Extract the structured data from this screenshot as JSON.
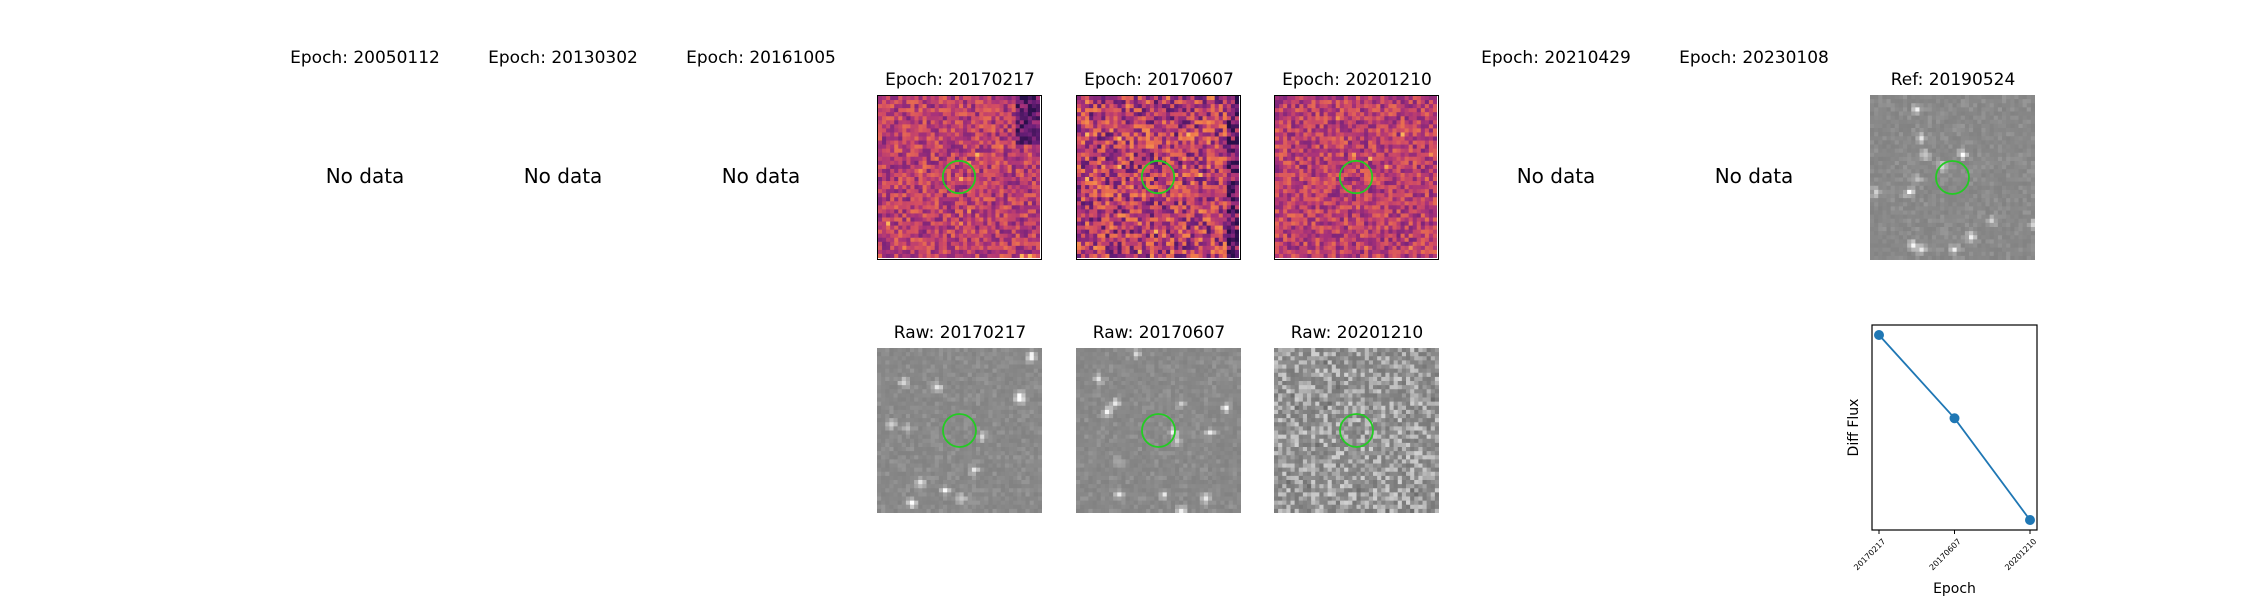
{
  "top_row": [
    {
      "title": "Epoch: 20050112",
      "status": "No data"
    },
    {
      "title": "Epoch: 20130302",
      "status": "No data"
    },
    {
      "title": "Epoch: 20161005",
      "status": "No data"
    },
    {
      "title": "Epoch: 20170217",
      "status": null
    },
    {
      "title": "Epoch: 20170607",
      "status": null
    },
    {
      "title": "Epoch: 20201210",
      "status": null
    },
    {
      "title": "Epoch: 20210429",
      "status": "No data"
    },
    {
      "title": "Epoch: 20230108",
      "status": "No data"
    },
    {
      "title": "Ref: 20190524",
      "status": null
    }
  ],
  "bottom_row": [
    {
      "title": "Raw: 20170217"
    },
    {
      "title": "Raw: 20170607"
    },
    {
      "title": "Raw: 20201210"
    }
  ],
  "colors": {
    "aperture": "#22cc22",
    "series": "#1f77b4",
    "diff_cmap": [
      "#2a0f4a",
      "#6b1f7a",
      "#a8327a",
      "#d44e62",
      "#f07a4a",
      "#fbb45a"
    ],
    "raw_gray": [
      "#6a6a6a",
      "#8c8c8c",
      "#ffffff"
    ]
  },
  "chart_data": {
    "type": "line",
    "x": [
      "20170217",
      "20170607",
      "20201210"
    ],
    "y_relative": [
      1.0,
      0.55,
      0.0
    ],
    "xlabel": "Epoch",
    "ylabel": "Diff Flux",
    "marker": "circle",
    "yticks_shown": false
  }
}
